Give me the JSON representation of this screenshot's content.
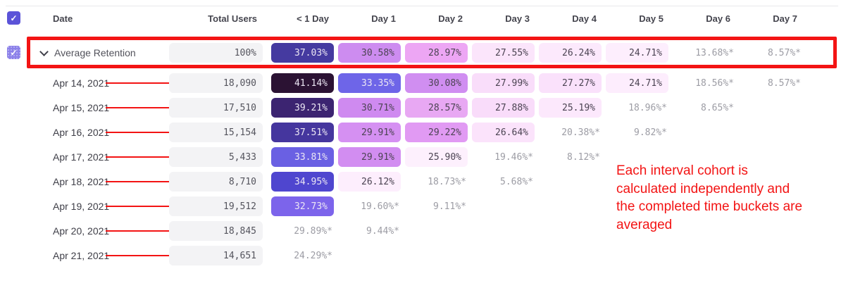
{
  "header": {
    "date": "Date",
    "total_users": "Total Users",
    "day_columns": [
      "< 1 Day",
      "Day 1",
      "Day 2",
      "Day 3",
      "Day 4",
      "Day 5",
      "Day 6",
      "Day 7"
    ]
  },
  "average_row": {
    "label": "Average Retention",
    "total": "100%",
    "cells": [
      {
        "value": "37.03%",
        "bg": "#453aa0",
        "fg": "light"
      },
      {
        "value": "30.58%",
        "bg": "#cd8cf0",
        "fg": "dark"
      },
      {
        "value": "28.97%",
        "bg": "#eda6f4",
        "fg": "dark"
      },
      {
        "value": "27.55%",
        "bg": "#fbe5fb",
        "fg": "dark"
      },
      {
        "value": "26.24%",
        "bg": "#fce9fc",
        "fg": "dark"
      },
      {
        "value": "24.71%",
        "bg": "#fdeefd",
        "fg": "dark"
      },
      {
        "value": "13.68%*",
        "muted": true
      },
      {
        "value": "8.57%*",
        "muted": true
      }
    ]
  },
  "rows": [
    {
      "date": "Apr 14, 2021",
      "total": "18,090",
      "cells": [
        {
          "value": "41.14%",
          "bg": "#2b1233",
          "fg": "light"
        },
        {
          "value": "33.35%",
          "bg": "#6e65e8",
          "fg": "light"
        },
        {
          "value": "30.08%",
          "bg": "#d08ef1",
          "fg": "dark"
        },
        {
          "value": "27.99%",
          "bg": "#f9ddfa",
          "fg": "dark"
        },
        {
          "value": "27.27%",
          "bg": "#fae1fb",
          "fg": "dark"
        },
        {
          "value": "24.71%",
          "bg": "#fdedfd",
          "fg": "dark"
        },
        {
          "value": "18.56%*",
          "muted": true
        },
        {
          "value": "8.57%*",
          "muted": true
        }
      ]
    },
    {
      "date": "Apr 15, 2021",
      "total": "17,510",
      "cells": [
        {
          "value": "39.21%",
          "bg": "#3c2471",
          "fg": "light"
        },
        {
          "value": "30.71%",
          "bg": "#cf8af0",
          "fg": "dark"
        },
        {
          "value": "28.57%",
          "bg": "#e8a8f3",
          "fg": "dark"
        },
        {
          "value": "27.88%",
          "bg": "#f9dcfa",
          "fg": "dark"
        },
        {
          "value": "25.19%",
          "bg": "#fce8fc",
          "fg": "dark"
        },
        {
          "value": "18.96%*",
          "muted": true
        },
        {
          "value": "8.65%*",
          "muted": true
        }
      ]
    },
    {
      "date": "Apr 16, 2021",
      "total": "15,154",
      "cells": [
        {
          "value": "37.51%",
          "bg": "#45369e",
          "fg": "light"
        },
        {
          "value": "29.91%",
          "bg": "#d590f2",
          "fg": "dark"
        },
        {
          "value": "29.22%",
          "bg": "#e19af3",
          "fg": "dark"
        },
        {
          "value": "26.64%",
          "bg": "#fbe3fb",
          "fg": "dark"
        },
        {
          "value": "20.38%*",
          "muted": true
        },
        {
          "value": "9.82%*",
          "muted": true
        }
      ]
    },
    {
      "date": "Apr 17, 2021",
      "total": "5,433",
      "cells": [
        {
          "value": "33.81%",
          "bg": "#6a60e3",
          "fg": "light"
        },
        {
          "value": "29.91%",
          "bg": "#d28df1",
          "fg": "dark"
        },
        {
          "value": "25.90%",
          "bg": "#fdf0fd",
          "fg": "dark"
        },
        {
          "value": "19.46%*",
          "muted": true
        },
        {
          "value": "8.12%*",
          "muted": true
        }
      ]
    },
    {
      "date": "Apr 18, 2021",
      "total": "8,710",
      "cells": [
        {
          "value": "34.95%",
          "bg": "#4f46cf",
          "fg": "light"
        },
        {
          "value": "26.12%",
          "bg": "#fdeefd",
          "fg": "dark"
        },
        {
          "value": "18.73%*",
          "muted": true
        },
        {
          "value": "5.68%*",
          "muted": true
        }
      ]
    },
    {
      "date": "Apr 19, 2021",
      "total": "19,512",
      "cells": [
        {
          "value": "32.73%",
          "bg": "#7c64eb",
          "fg": "light"
        },
        {
          "value": "19.60%*",
          "muted": true
        },
        {
          "value": "9.11%*",
          "muted": true
        }
      ]
    },
    {
      "date": "Apr 20, 2021",
      "total": "18,845",
      "cells": [
        {
          "value": "29.89%*",
          "muted": true
        },
        {
          "value": "9.44%*",
          "muted": true
        }
      ]
    },
    {
      "date": "Apr 21, 2021",
      "total": "14,651",
      "cells": [
        {
          "value": "24.29%*",
          "muted": true
        }
      ]
    }
  ],
  "annotation": {
    "text": "Each interval cohort is\ncalculated independently and\nthe completed time buckets are\naveraged"
  },
  "icons": {
    "checkbox_check": "✓",
    "chevron": "chevron-down"
  },
  "colors": {
    "annotation_red": "#f31414",
    "accent_purple": "#5b53d8",
    "average_checkbox_purple": "#8b80e9",
    "total_cell_gray": "#f3f3f5",
    "muted_text": "#9c9ca4"
  }
}
